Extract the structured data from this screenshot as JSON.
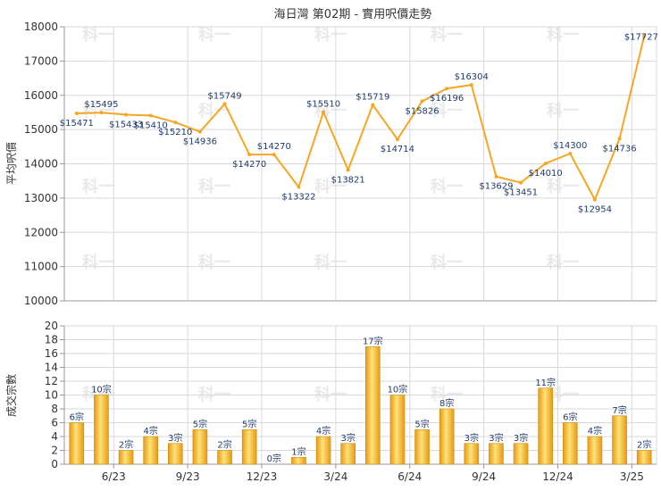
{
  "title": "海日灣 第02期 - 實用呎價走勢",
  "watermark": "科一",
  "colors": {
    "line": "#f5a623",
    "bar_light": "#fde27a",
    "bar_dark": "#e79a12",
    "grid": "#d9d9d9",
    "label": "#1f3a6e"
  },
  "chart_data": [
    {
      "type": "line",
      "ylabel": "平均呎價",
      "ylim": [
        10000,
        18000
      ],
      "yticks": [
        10000,
        11000,
        12000,
        13000,
        14000,
        15000,
        16000,
        17000,
        18000
      ],
      "x_tick_labels": [
        "6/23",
        "9/23",
        "12/23",
        "3/24",
        "6/24",
        "9/24",
        "12/24",
        "3/25"
      ],
      "grid": true,
      "values": [
        15471,
        15495,
        15433,
        15410,
        15210,
        14936,
        15749,
        14270,
        14270,
        13322,
        15510,
        13821,
        15719,
        14714,
        15826,
        16196,
        16304,
        13629,
        13451,
        14010,
        14300,
        12954,
        14736,
        17727
      ],
      "data_labels": [
        "$15471",
        "$15495",
        "$15433",
        "$15410",
        "$15210",
        "$14936",
        "$15749",
        "$14270",
        "$14270",
        "$13322",
        "$15510",
        "$13821",
        "$15719",
        "$14714",
        "$15826",
        "$16196",
        "$16304",
        "$13629",
        "$13451",
        "$14010",
        "$14300",
        "$12954",
        "$14736",
        "$17727"
      ]
    },
    {
      "type": "bar",
      "ylabel": "成交宗數",
      "ylim": [
        0,
        20
      ],
      "yticks": [
        0,
        2,
        4,
        6,
        8,
        10,
        12,
        14,
        16,
        18,
        20
      ],
      "x_tick_labels": [
        "6/23",
        "9/23",
        "12/23",
        "3/24",
        "6/24",
        "9/24",
        "12/24",
        "3/25"
      ],
      "grid": true,
      "values": [
        6,
        10,
        2,
        4,
        3,
        5,
        2,
        5,
        0,
        1,
        4,
        3,
        17,
        10,
        5,
        8,
        3,
        3,
        3,
        11,
        6,
        4,
        7,
        2
      ],
      "data_labels": [
        "6宗",
        "10宗",
        "2宗",
        "4宗",
        "3宗",
        "5宗",
        "2宗",
        "5宗",
        "0宗",
        "1宗",
        "4宗",
        "3宗",
        "17宗",
        "10宗",
        "5宗",
        "8宗",
        "3宗",
        "3宗",
        "3宗",
        "11宗",
        "6宗",
        "4宗",
        "7宗",
        "2宗"
      ]
    }
  ]
}
